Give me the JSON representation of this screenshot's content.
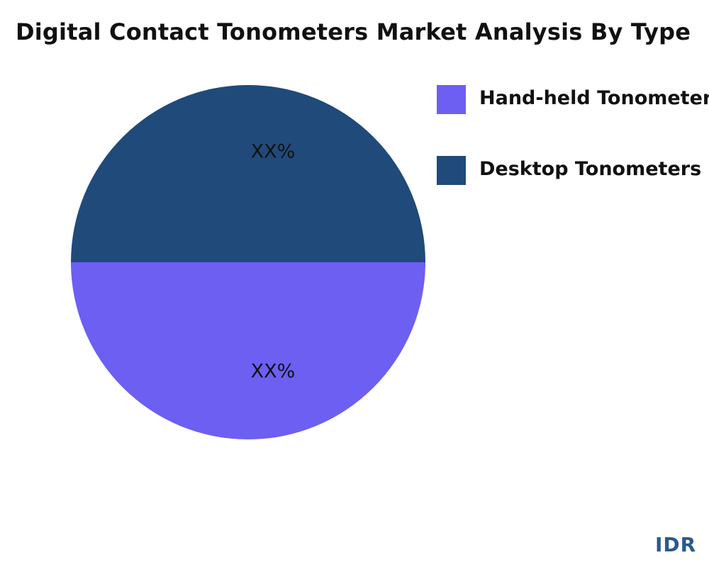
{
  "chart_data": {
    "type": "pie",
    "title": "Digital Contact Tonometers Market Analysis By Type",
    "categories": [
      "Hand-held Tonometers",
      "Desktop Tonometers"
    ],
    "values": [
      50,
      50
    ],
    "data_labels": [
      "XX%",
      "XX%"
    ],
    "colors": [
      "#6c5ff2",
      "#1f4a7a"
    ],
    "legend_position": "right"
  },
  "brand": "IDR"
}
